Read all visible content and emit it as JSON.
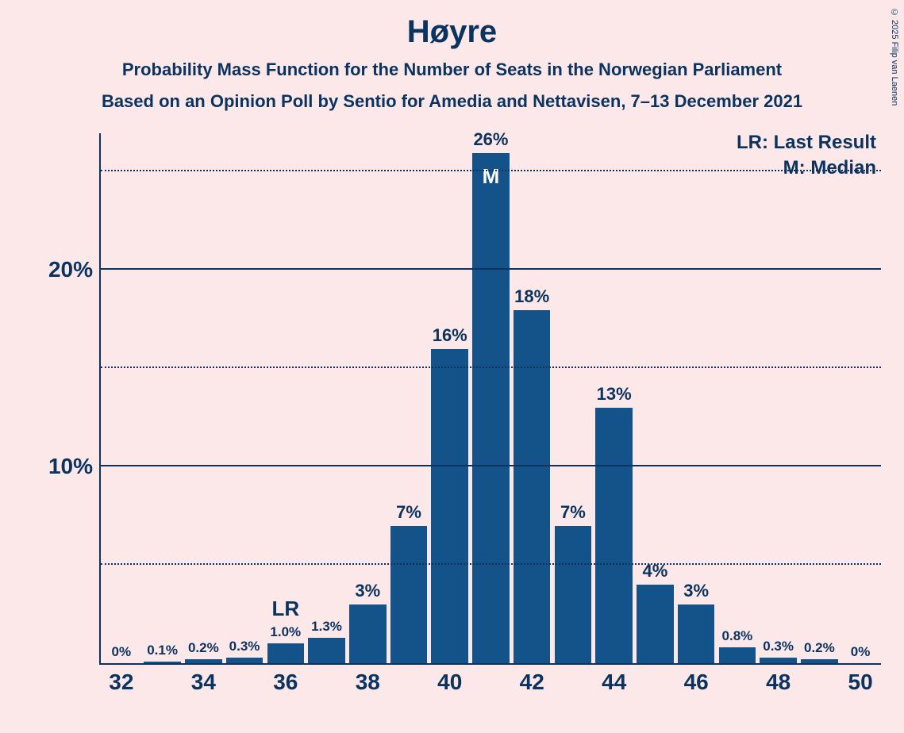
{
  "copyright": "© 2025 Filip van Laenen",
  "title": "Høyre",
  "subtitle1": "Probability Mass Function for the Number of Seats in the Norwegian Parliament",
  "subtitle2": "Based on an Opinion Poll by Sentio for Amedia and Nettavisen, 7–13 December 2021",
  "legend": {
    "lr": "LR: Last Result",
    "m": "M: Median"
  },
  "chart": {
    "type": "bar",
    "background_color": "#fce8e8",
    "bar_color": "#14538a",
    "text_color": "#0b3360",
    "ylim_max_pct": 27,
    "y_gridlines": [
      {
        "value": 5,
        "style": "dotted",
        "label": ""
      },
      {
        "value": 10,
        "style": "solid",
        "label": "10%"
      },
      {
        "value": 15,
        "style": "dotted",
        "label": ""
      },
      {
        "value": 20,
        "style": "solid",
        "label": "20%"
      },
      {
        "value": 25,
        "style": "dotted",
        "label": ""
      }
    ],
    "x_start": 32,
    "x_end": 50,
    "x_tick_step": 2,
    "x_ticks": [
      "32",
      "34",
      "36",
      "38",
      "40",
      "42",
      "44",
      "46",
      "48",
      "50"
    ],
    "bar_label_fontsize_large": 22,
    "bar_label_fontsize_small": 17,
    "bars": [
      {
        "x": 32,
        "value": 0.0,
        "label": "0%",
        "size": "small"
      },
      {
        "x": 33,
        "value": 0.1,
        "label": "0.1%",
        "size": "small"
      },
      {
        "x": 34,
        "value": 0.2,
        "label": "0.2%",
        "size": "small"
      },
      {
        "x": 35,
        "value": 0.3,
        "label": "0.3%",
        "size": "small"
      },
      {
        "x": 36,
        "value": 1.0,
        "label": "1.0%",
        "size": "small",
        "annot_above": "LR"
      },
      {
        "x": 37,
        "value": 1.3,
        "label": "1.3%",
        "size": "small"
      },
      {
        "x": 38,
        "value": 3.0,
        "label": "3%",
        "size": "large"
      },
      {
        "x": 39,
        "value": 7.0,
        "label": "7%",
        "size": "large"
      },
      {
        "x": 40,
        "value": 16.0,
        "label": "16%",
        "size": "large"
      },
      {
        "x": 41,
        "value": 26.0,
        "label": "26%",
        "size": "large",
        "annot_inside": "M"
      },
      {
        "x": 42,
        "value": 18.0,
        "label": "18%",
        "size": "large"
      },
      {
        "x": 43,
        "value": 7.0,
        "label": "7%",
        "size": "large"
      },
      {
        "x": 44,
        "value": 13.0,
        "label": "13%",
        "size": "large"
      },
      {
        "x": 45,
        "value": 4.0,
        "label": "4%",
        "size": "large"
      },
      {
        "x": 46,
        "value": 3.0,
        "label": "3%",
        "size": "large"
      },
      {
        "x": 47,
        "value": 0.8,
        "label": "0.8%",
        "size": "small"
      },
      {
        "x": 48,
        "value": 0.3,
        "label": "0.3%",
        "size": "small"
      },
      {
        "x": 49,
        "value": 0.2,
        "label": "0.2%",
        "size": "small"
      },
      {
        "x": 50,
        "value": 0.0,
        "label": "0%",
        "size": "small"
      }
    ]
  }
}
